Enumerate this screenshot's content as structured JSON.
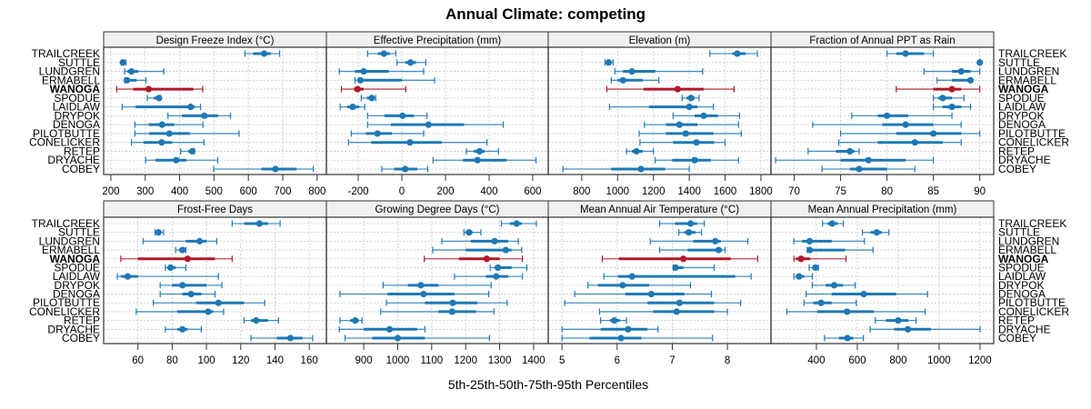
{
  "chart_data": {
    "type": "dotplot-percentile-intervals",
    "title": "Annual Climate: competing",
    "xlabel": "5th-25th-50th-75th-95th Percentiles",
    "ylabel": "",
    "highlight": "WANOGA",
    "colors": {
      "default": "#1f78b4",
      "highlight": "#b2182b",
      "strip_bg": "#f0f0f0",
      "grid": "#c8c8c8"
    },
    "categories": [
      "TRAILCREEK",
      "SUTTLE",
      "LUNDGREN",
      "ERMABELL",
      "WANOGA",
      "SPODUE",
      "LAIDLAW",
      "DRYPOK",
      "DENOGA",
      "PILOTBUTTE",
      "CONELICKER",
      "RETEP",
      "DRYACHE",
      "COBEY"
    ],
    "grid": true,
    "panels": [
      {
        "name": "Design Freeze Index (°C)",
        "xlim": [
          179,
          827
        ],
        "ticks": [
          200,
          300,
          400,
          500,
          600,
          700,
          800
        ],
        "values": [
          [
            590,
            614,
            646,
            665,
            691
          ],
          [
            231,
            233,
            235,
            240,
            244
          ],
          [
            240,
            248,
            260,
            280,
            354
          ],
          [
            240,
            243,
            247,
            275,
            302
          ],
          [
            217,
            265,
            310,
            440,
            467
          ],
          [
            306,
            325,
            340,
            345,
            344
          ],
          [
            233,
            272,
            432,
            445,
            461
          ],
          [
            366,
            407,
            472,
            512,
            548
          ],
          [
            270,
            310,
            349,
            385,
            468
          ],
          [
            270,
            312,
            370,
            430,
            573
          ],
          [
            260,
            295,
            348,
            378,
            471
          ],
          [
            403,
            425,
            437,
            440,
            443
          ],
          [
            301,
            330,
            390,
            420,
            511
          ],
          [
            499,
            638,
            679,
            740,
            789
          ]
        ]
      },
      {
        "name": "Effective Precipitation (mm)",
        "xlim": [
          -346,
          671
        ],
        "ticks": [
          -200,
          0,
          200,
          400,
          600
        ],
        "values": [
          [
            -157,
            -110,
            -82,
            -55,
            -28
          ],
          [
            -22,
            15,
            40,
            65,
            110
          ],
          [
            -287,
            -215,
            -175,
            -60,
            100
          ],
          [
            -215,
            -200,
            -190,
            0,
            150
          ],
          [
            -277,
            -220,
            -203,
            -175,
            18
          ],
          [
            -186,
            -160,
            -138,
            -125,
            -120
          ],
          [
            -283,
            -250,
            -225,
            -195,
            -170
          ],
          [
            -157,
            -80,
            3,
            55,
            115
          ],
          [
            -157,
            -50,
            122,
            285,
            465
          ],
          [
            -232,
            -165,
            -112,
            -45,
            100
          ],
          [
            -245,
            -140,
            37,
            183,
            390
          ],
          [
            296,
            330,
            356,
            380,
            443
          ],
          [
            143,
            280,
            347,
            480,
            615
          ],
          [
            -92,
            -35,
            15,
            70,
            118
          ]
        ]
      },
      {
        "name": "Elevation (m)",
        "xlim": [
          613,
          1856
        ],
        "ticks": [
          800,
          1000,
          1200,
          1400,
          1600,
          1800
        ],
        "values": [
          [
            1515,
            1640,
            1668,
            1715,
            1780
          ],
          [
            930,
            940,
            950,
            960,
            975
          ],
          [
            985,
            1030,
            1080,
            1210,
            1475
          ],
          [
            965,
            1000,
            1030,
            1140,
            1230
          ],
          [
            940,
            1145,
            1335,
            1480,
            1650
          ],
          [
            1360,
            1385,
            1410,
            1430,
            1455
          ],
          [
            955,
            1175,
            1400,
            1445,
            1535
          ],
          [
            1310,
            1430,
            1480,
            1560,
            1680
          ],
          [
            1150,
            1270,
            1345,
            1445,
            1675
          ],
          [
            1120,
            1270,
            1380,
            1535,
            1690
          ],
          [
            1125,
            1310,
            1440,
            1540,
            1600
          ],
          [
            1050,
            1080,
            1105,
            1140,
            1200
          ],
          [
            1210,
            1305,
            1430,
            1520,
            1675
          ],
          [
            695,
            965,
            1130,
            1265,
            1400
          ]
        ]
      },
      {
        "name": "Fraction of Annual PPT as Rain",
        "xlim": [
          67.5,
          91.5
        ],
        "ticks": [
          70,
          75,
          80,
          85,
          90
        ],
        "values": [
          [
            80,
            81,
            82,
            84,
            85
          ],
          [
            90,
            90,
            90,
            90,
            90
          ],
          [
            84,
            87,
            88,
            89,
            90
          ],
          [
            85.4,
            87,
            89,
            89,
            89
          ],
          [
            81,
            85,
            87,
            88,
            90
          ],
          [
            85,
            85.5,
            86,
            87,
            88.3
          ],
          [
            85,
            86,
            87,
            88,
            89
          ],
          [
            76.2,
            79,
            80,
            82.3,
            87
          ],
          [
            72,
            79.5,
            82,
            85,
            88
          ],
          [
            75,
            81,
            85,
            88,
            90
          ],
          [
            74.8,
            79,
            83,
            86,
            88
          ],
          [
            71.5,
            74.5,
            76,
            76.5,
            77
          ],
          [
            68,
            75,
            78,
            82,
            85
          ],
          [
            73,
            76,
            77,
            80,
            83
          ]
        ]
      },
      {
        "name": "Frost-Free Days",
        "xlim": [
          40,
          170
        ],
        "ticks": [
          60,
          80,
          100,
          120,
          140,
          160
        ],
        "values": [
          [
            115,
            122,
            131,
            136,
            143
          ],
          [
            70,
            71,
            72,
            73,
            75
          ],
          [
            63,
            88,
            96,
            100,
            106
          ],
          [
            82,
            84,
            86,
            87,
            88
          ],
          [
            50,
            60,
            89,
            105,
            115
          ],
          [
            76,
            78,
            79,
            82,
            88
          ],
          [
            48,
            50,
            54,
            60,
            107
          ],
          [
            73,
            80,
            86,
            100,
            109
          ],
          [
            73,
            86,
            91,
            97,
            105
          ],
          [
            69,
            94,
            107,
            122,
            134
          ],
          [
            59,
            83,
            101,
            104,
            110
          ],
          [
            122,
            126,
            129,
            136,
            142
          ],
          [
            76,
            83,
            86,
            89,
            97
          ],
          [
            126,
            141,
            149,
            156,
            162
          ]
        ]
      },
      {
        "name": "Growing Degree Days (°C)",
        "xlim": [
          790,
          1443
        ],
        "ticks": [
          900,
          1000,
          1100,
          1200,
          1300,
          1400
        ],
        "values": [
          [
            1305,
            1330,
            1350,
            1365,
            1408
          ],
          [
            1195,
            1200,
            1210,
            1220,
            1245
          ],
          [
            1130,
            1215,
            1285,
            1325,
            1355
          ],
          [
            1103,
            1200,
            1318,
            1335,
            1365
          ],
          [
            1078,
            1180,
            1262,
            1300,
            1367
          ],
          [
            1272,
            1285,
            1295,
            1335,
            1380
          ],
          [
            1167,
            1260,
            1290,
            1325,
            1367
          ],
          [
            957,
            1030,
            1068,
            1120,
            1275
          ],
          [
            830,
            970,
            1076,
            1167,
            1268
          ],
          [
            967,
            1080,
            1162,
            1235,
            1322
          ],
          [
            950,
            1120,
            1160,
            1230,
            1283
          ],
          [
            830,
            860,
            875,
            885,
            895
          ],
          [
            828,
            900,
            976,
            1057,
            1080
          ],
          [
            845,
            925,
            1000,
            1080,
            1270
          ]
        ]
      },
      {
        "name": "Mean Annual Air Temperature (°C)",
        "xlim": [
          4.75,
          8.79
        ],
        "ticks": [
          5,
          6,
          7,
          8
        ],
        "values": [
          [
            6.77,
            7.05,
            7.33,
            7.45,
            7.58
          ],
          [
            7.12,
            7.22,
            7.3,
            7.42,
            7.53
          ],
          [
            6.6,
            7.38,
            7.78,
            7.88,
            8.37
          ],
          [
            6.77,
            7.28,
            7.84,
            7.9,
            7.96
          ],
          [
            5.73,
            6.03,
            7.2,
            8.06,
            8.55
          ],
          [
            7.02,
            7.04,
            7.06,
            7.2,
            7.76
          ],
          [
            5.76,
            6.02,
            6.27,
            8.14,
            8.43
          ],
          [
            5.47,
            5.65,
            6.1,
            6.58,
            7.33
          ],
          [
            5.23,
            6.15,
            6.62,
            7.22,
            7.71
          ],
          [
            5.05,
            6.55,
            7.13,
            7.76,
            8.24
          ],
          [
            5.68,
            6.65,
            7.08,
            7.76,
            8.0
          ],
          [
            5.7,
            5.87,
            5.95,
            6.05,
            6.17
          ],
          [
            5.0,
            5.7,
            6.2,
            6.55,
            6.74
          ],
          [
            5.0,
            5.5,
            6.07,
            6.44,
            7.73
          ]
        ]
      },
      {
        "name": "Mean Annual Precipitation (mm)",
        "xlim": [
          178,
          1267
        ],
        "ticks": [
          400,
          600,
          800,
          1000,
          1200
        ],
        "values": [
          [
            430,
            455,
            477,
            505,
            532
          ],
          [
            625,
            665,
            695,
            720,
            755
          ],
          [
            290,
            330,
            367,
            475,
            635
          ],
          [
            355,
            360,
            368,
            540,
            677
          ],
          [
            290,
            300,
            325,
            370,
            545
          ],
          [
            365,
            385,
            395,
            405,
            410
          ],
          [
            290,
            300,
            315,
            340,
            380
          ],
          [
            380,
            445,
            487,
            530,
            590
          ],
          [
            350,
            475,
            632,
            790,
            943
          ],
          [
            340,
            385,
            423,
            475,
            595
          ],
          [
            255,
            405,
            550,
            680,
            932
          ],
          [
            688,
            740,
            800,
            850,
            888
          ],
          [
            663,
            780,
            847,
            960,
            1200
          ],
          [
            440,
            510,
            552,
            580,
            630
          ]
        ]
      }
    ]
  }
}
